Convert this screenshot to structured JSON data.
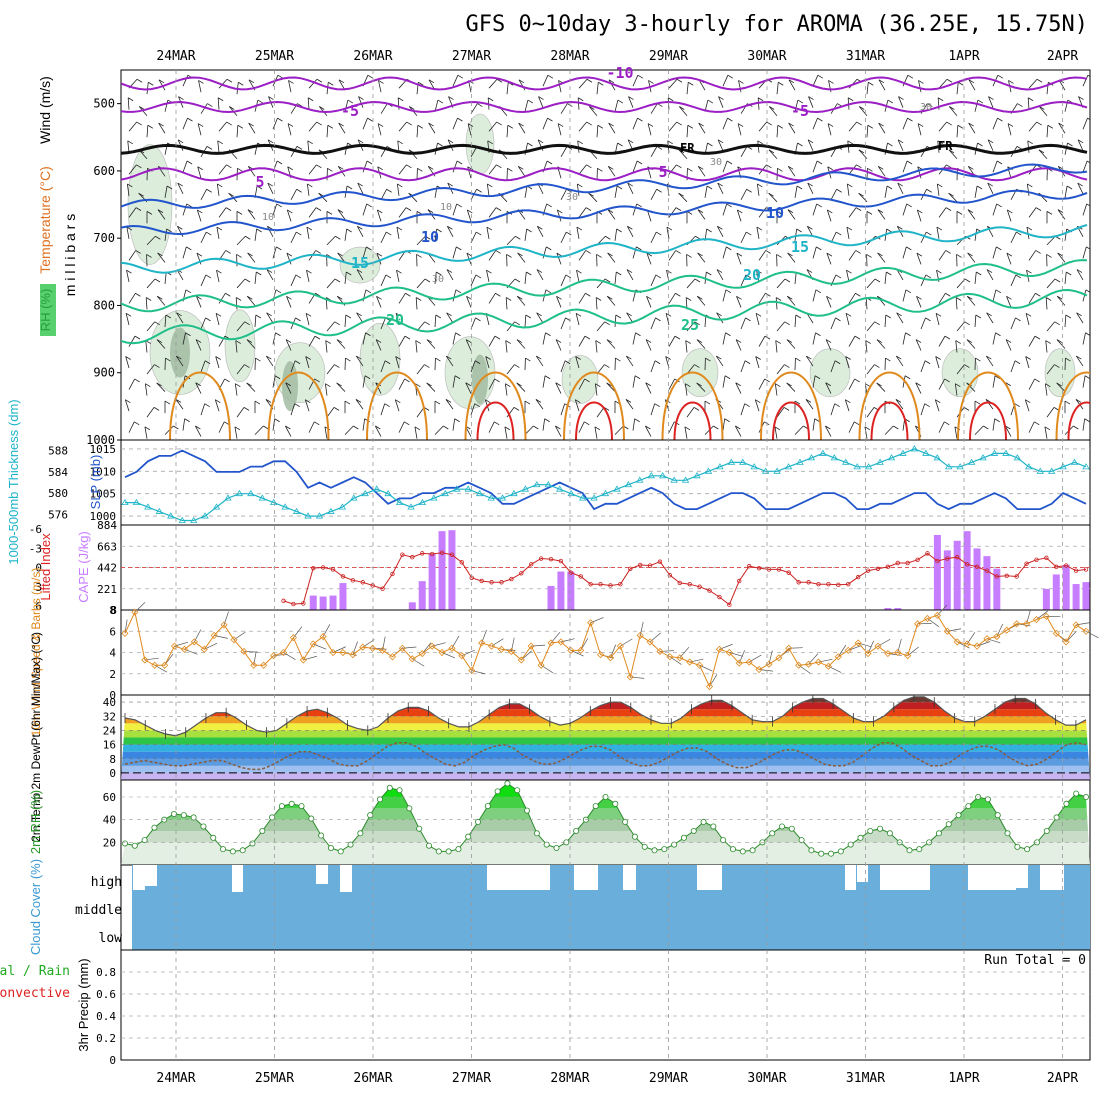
{
  "title": "GFS 0~10day 3-hourly for AROMA (36.25E, 15.75N)",
  "dates": [
    "24MAR",
    "25MAR",
    "26MAR",
    "27MAR",
    "28MAR",
    "29MAR",
    "30MAR",
    "31MAR",
    "1APR",
    "2APR"
  ],
  "colors": {
    "purple": "#9b1fc4",
    "blue": "#2255cc",
    "cyan": "#1fb4c8",
    "green": "#1fbf8a",
    "orange": "#e08a1e",
    "red": "#dd2222",
    "bar": "#c77dff",
    "precip_grid": "#aaaaaa"
  },
  "chart_data": [
    {
      "type": "contour",
      "panel": "upper_air",
      "ylabel_parts": [
        "RH (%)",
        "Temperature (°C)",
        "Wind (m/s)"
      ],
      "ylabel_units": "m i l l i b a r s",
      "yticks": [
        500,
        600,
        700,
        800,
        900,
        1000
      ],
      "ylim": [
        450,
        1000
      ],
      "temperature_labels": [
        "-10",
        "-5",
        "-5",
        "5",
        "5",
        "10",
        "10",
        "15",
        "15",
        "20",
        "20",
        "25"
      ],
      "freezing_labels": [
        "FR",
        "FR"
      ],
      "rh_labels": [
        "10",
        "10",
        "30",
        "30",
        "30",
        "30"
      ]
    },
    {
      "type": "line",
      "panel": "slp_thickness",
      "ylabel_left": "1000-500mb Thickness (dm)",
      "ylabel_right": "SLP (mb)",
      "yticks_left": [
        576,
        580,
        584,
        588
      ],
      "yticks_right": [
        1000,
        1005,
        1010,
        1015
      ],
      "series": [
        {
          "name": "Thickness",
          "values": [
            583,
            584,
            586,
            587,
            587,
            588,
            587,
            586,
            584,
            584,
            584,
            585,
            585,
            586,
            586,
            584,
            581,
            582,
            581,
            582,
            583,
            582,
            580,
            578,
            579,
            579,
            580,
            580,
            581,
            581,
            582,
            581,
            580,
            578,
            578,
            579,
            580,
            581,
            582,
            581,
            580,
            577,
            578,
            578,
            579,
            580,
            581,
            580,
            578,
            577,
            577,
            578,
            579,
            580,
            580,
            579,
            577,
            577,
            577,
            578,
            579,
            580,
            580,
            579,
            577,
            577,
            578,
            578,
            579,
            580,
            580,
            578,
            577,
            578,
            578,
            579,
            580,
            579,
            577,
            577,
            577,
            578,
            580,
            579,
            578
          ]
        },
        {
          "name": "SLP",
          "values": [
            1003,
            1003,
            1002,
            1001,
            1000,
            999,
            999,
            1000,
            1002,
            1004,
            1005,
            1005,
            1004,
            1003,
            1002,
            1001,
            1000,
            1000,
            1001,
            1002,
            1004,
            1005,
            1006,
            1005,
            1003,
            1002,
            1003,
            1004,
            1005,
            1006,
            1006,
            1005,
            1004,
            1004,
            1005,
            1006,
            1007,
            1007,
            1006,
            1005,
            1004,
            1004,
            1005,
            1006,
            1007,
            1008,
            1009,
            1009,
            1008,
            1008,
            1009,
            1010,
            1011,
            1012,
            1012,
            1011,
            1010,
            1010,
            1011,
            1012,
            1013,
            1014,
            1013,
            1012,
            1011,
            1011,
            1012,
            1013,
            1014,
            1015,
            1014,
            1013,
            1011,
            1011,
            1012,
            1013,
            1014,
            1014,
            1013,
            1011,
            1010,
            1010,
            1011,
            1012,
            1011
          ]
        }
      ]
    },
    {
      "type": "bar",
      "panel": "lifted_cape",
      "ylabel_left": "Lifted Index",
      "ylabel_right": "CAPE (J/kg)",
      "yticks_left": [
        "-6",
        "-3",
        "0",
        "3",
        "6"
      ],
      "yticks_right": [
        8,
        221,
        442,
        663,
        884
      ],
      "cape": [
        0,
        0,
        0,
        0,
        0,
        0,
        0,
        0,
        0,
        0,
        0,
        0,
        0,
        0,
        0,
        0,
        0,
        0,
        0,
        150,
        140,
        150,
        280,
        0,
        0,
        0,
        0,
        0,
        0,
        80,
        300,
        590,
        820,
        830,
        0,
        0,
        0,
        0,
        0,
        0,
        0,
        0,
        0,
        250,
        400,
        400,
        0,
        0,
        0,
        0,
        0,
        0,
        0,
        0,
        0,
        0,
        0,
        0,
        0,
        0,
        0,
        0,
        0,
        0,
        0,
        0,
        0,
        0,
        0,
        0,
        0,
        0,
        0,
        0,
        0,
        0,
        0,
        20,
        20,
        0,
        0,
        0,
        780,
        620,
        720,
        820,
        640,
        560,
        430,
        0,
        0,
        0,
        0,
        220,
        370,
        470,
        270,
        290
      ],
      "lifted_index": [
        null,
        null,
        null,
        null,
        null,
        null,
        null,
        null,
        null,
        null,
        null,
        null,
        null,
        null,
        null,
        null,
        5.2,
        5.7,
        5.6,
        0.1,
        0.0,
        0.3,
        1.4,
        2.0,
        2.3,
        2.8,
        3.3,
        1.0,
        -2.0,
        -1.6,
        -2.2,
        -2.1,
        -2.3,
        -2.0,
        -0.8,
        1.6,
        2.1,
        2.3,
        2.3,
        1.8,
        0.9,
        -0.5,
        -1.4,
        -1.3,
        -1.0,
        0.8,
        1.4,
        2.6,
        2.6,
        2.8,
        2.6,
        0.2,
        -0.4,
        -0.3,
        -0.9,
        1.2,
        2.4,
        2.6,
        3.0,
        3.6,
        4.6,
        5.8,
        2.1,
        -0.2,
        0.1,
        0.3,
        0.3,
        0.8,
        2.3,
        2.3,
        2.6,
        2.6,
        2.7,
        2.6,
        1.5,
        0.5,
        0.2,
        -0.1,
        -0.7,
        -0.7,
        -1.2,
        -2.2,
        -1.0,
        -1.4,
        -1.6,
        -0.5,
        -0.1,
        0.5,
        1.4,
        1.3,
        1.4,
        -0.6,
        -1.2,
        -1.5,
        -0.1,
        -0.3,
        0.5,
        0.3
      ]
    },
    {
      "type": "line",
      "panel": "wind10m",
      "ylabel": "10m Wind Speed & Barbs (m/s)",
      "yticks": [
        0,
        2,
        4,
        6,
        8
      ],
      "ylim": [
        0,
        8
      ],
      "values": [
        5.8,
        7.8,
        3.3,
        2.8,
        2.8,
        4.6,
        4.3,
        5.0,
        4.3,
        5.6,
        6.6,
        5.2,
        4.1,
        2.8,
        2.8,
        3.7,
        4.0,
        5.4,
        3.3,
        4.8,
        5.5,
        4.0,
        4.0,
        3.8,
        4.5,
        4.4,
        4.2,
        3.6,
        4.4,
        3.4,
        3.9,
        4.6,
        4.0,
        4.4,
        3.7,
        2.3,
        4.9,
        4.6,
        4.3,
        4.1,
        3.3,
        4.6,
        2.8,
        4.9,
        5.0,
        4.2,
        4.2,
        6.8,
        3.8,
        3.5,
        4.6,
        1.7,
        5.6,
        5.0,
        4.1,
        3.6,
        3.5,
        3.1,
        2.8,
        0.8,
        4.3,
        4.0,
        3.0,
        3.1,
        2.4,
        2.9,
        3.5,
        4.4,
        2.8,
        2.9,
        3.1,
        2.7,
        3.6,
        4.2,
        4.9,
        3.9,
        4.6,
        3.9,
        4.0,
        3.7,
        6.7,
        7.2,
        7.5,
        6.0,
        5.0,
        4.8,
        4.6,
        5.3,
        5.5,
        6.1,
        6.7,
        6.7,
        7.1,
        7.4,
        5.8,
        5.0,
        6.6,
        6.0
      ]
    },
    {
      "type": "area",
      "panel": "temp_dewpt",
      "ylabel": "2m Temp 2m DewPt (6hr Min/Max) (°C)",
      "yticks": [
        0,
        8,
        16,
        24,
        32,
        40
      ],
      "ylim": [
        -4,
        44
      ],
      "temperature": [
        31,
        30,
        27,
        24,
        22,
        21,
        23,
        27,
        31,
        34,
        34,
        31,
        27,
        24,
        23,
        24,
        28,
        32,
        35,
        36,
        34,
        31,
        27,
        25,
        24,
        26,
        31,
        35,
        37,
        37,
        35,
        31,
        28,
        26,
        26,
        29,
        33,
        37,
        39,
        39,
        36,
        32,
        29,
        27,
        28,
        31,
        35,
        38,
        40,
        40,
        37,
        33,
        30,
        28,
        28,
        31,
        36,
        39,
        41,
        41,
        38,
        34,
        30,
        29,
        29,
        32,
        37,
        40,
        42,
        42,
        39,
        35,
        31,
        29,
        29,
        32,
        37,
        41,
        43,
        43,
        40,
        35,
        31,
        29,
        29,
        32,
        36,
        40,
        42,
        42,
        39,
        34,
        30,
        27,
        27,
        30
      ],
      "dewpoint": [
        5,
        6,
        7,
        6,
        5,
        4,
        4,
        5,
        6,
        7,
        7,
        5,
        3,
        2,
        2,
        4,
        7,
        10,
        12,
        12,
        10,
        8,
        5,
        4,
        4,
        7,
        11,
        15,
        17,
        17,
        15,
        11,
        8,
        5,
        4,
        6,
        10,
        13,
        15,
        16,
        14,
        10,
        7,
        5,
        5,
        7,
        10,
        13,
        15,
        15,
        13,
        9,
        6,
        4,
        4,
        6,
        9,
        12,
        14,
        14,
        12,
        8,
        5,
        3,
        3,
        5,
        8,
        11,
        13,
        13,
        11,
        8,
        5,
        4,
        4,
        6,
        10,
        14,
        17,
        17,
        14,
        10,
        7,
        4,
        4,
        6,
        10,
        13,
        15,
        15,
        13,
        9,
        6,
        4,
        5,
        8,
        12,
        16,
        17,
        16
      ]
    },
    {
      "type": "area",
      "panel": "rh2m",
      "ylabel": "2m RH (%)",
      "yticks": [
        20,
        40,
        60
      ],
      "ylim": [
        0,
        75
      ],
      "values": [
        19,
        17,
        22,
        33,
        40,
        45,
        44,
        42,
        34,
        24,
        14,
        12,
        13,
        19,
        30,
        42,
        52,
        54,
        52,
        41,
        26,
        15,
        12,
        18,
        28,
        44,
        58,
        68,
        66,
        50,
        32,
        17,
        12,
        12,
        14,
        25,
        38,
        52,
        65,
        72,
        66,
        48,
        28,
        18,
        15,
        20,
        30,
        40,
        52,
        60,
        54,
        38,
        25,
        16,
        13,
        14,
        18,
        24,
        30,
        38,
        34,
        22,
        14,
        12,
        13,
        20,
        28,
        34,
        32,
        22,
        13,
        10,
        10,
        12,
        18,
        24,
        30,
        32,
        28,
        20,
        13,
        14,
        20,
        28,
        36,
        44,
        52,
        60,
        58,
        44,
        28,
        16,
        14,
        20,
        30,
        42,
        54,
        63,
        60
      ]
    },
    {
      "type": "bar",
      "panel": "cloud_cover",
      "ylabel": "Cloud Cover (%)",
      "yticks": [
        "high",
        "middle",
        "low"
      ]
    },
    {
      "type": "line",
      "panel": "precip",
      "ylabel_left": "Total / Rain",
      "ylabel_convective": "Convective",
      "ylabel": "3hr Precip (mm)",
      "yticks": [
        0,
        0.2,
        0.4,
        0.6,
        0.8
      ],
      "ylim": [
        0,
        1
      ],
      "run_total": "Run Total = 0"
    }
  ]
}
